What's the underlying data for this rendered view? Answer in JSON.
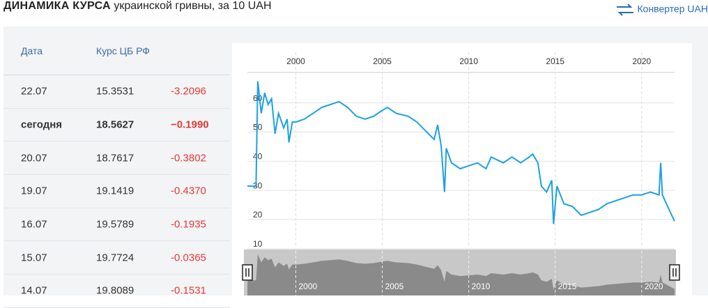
{
  "header": {
    "title": "ДИНАМИКА КУРСА",
    "subtitle": "украинской гривны, за 10 UAH",
    "link": "Конвертер UAH"
  },
  "table": {
    "columns": [
      "Дата",
      "Курс ЦБ РФ"
    ],
    "rows": [
      [
        "22.07",
        "15.3531",
        "-3.2096"
      ],
      [
        "сегодня",
        "18.5627",
        "−0.1990"
      ],
      [
        "20.07",
        "18.7617",
        "-0.3802"
      ],
      [
        "19.07",
        "19.1419",
        "-0.4370"
      ],
      [
        "16.07",
        "19.5789",
        "-0.1935"
      ],
      [
        "15.07",
        "19.7724",
        "-0.0365"
      ],
      [
        "14.07",
        "19.8089",
        "-0.1531"
      ]
    ]
  },
  "chart_data": {
    "type": "line",
    "color": "#1ba1e2",
    "x": [
      1997.2,
      1997.7,
      1997.8,
      1998.0,
      1998.2,
      1998.4,
      1998.6,
      1998.8,
      1999.0,
      1999.3,
      1999.5,
      1999.6,
      1999.8,
      2000,
      2000.5,
      2001,
      2001.5,
      2002,
      2002.5,
      2003,
      2003.5,
      2004,
      2004.5,
      2005,
      2005.3,
      2005.8,
      2006.5,
      2007,
      2007.5,
      2008,
      2008.2,
      2008.4,
      2008.6,
      2008.7,
      2009,
      2009.5,
      2010,
      2010.5,
      2011,
      2011.3,
      2012,
      2012.5,
      2013,
      2013.5,
      2013.7,
      2014,
      2014.2,
      2014.5,
      2014.8,
      2014.9,
      2015.1,
      2015.5,
      2016,
      2016.5,
      2017,
      2017.5,
      2018,
      2018.5,
      2019,
      2019.5,
      2020,
      2020.5,
      2021,
      2021.1,
      2021.2,
      2021.5,
      2021.9
    ],
    "values": [
      30,
      30,
      66,
      55,
      62,
      58,
      60,
      48,
      55,
      50,
      53,
      45,
      52,
      52,
      53,
      55,
      57,
      58,
      59,
      57,
      54,
      53,
      54,
      56,
      57,
      55,
      54,
      52,
      49,
      46,
      51,
      44,
      28,
      43,
      38,
      36,
      37,
      38,
      36,
      40,
      38,
      40,
      38,
      40,
      41,
      38,
      30,
      28,
      32,
      17,
      30,
      24,
      23,
      20,
      21,
      22,
      24,
      25,
      26,
      27,
      27,
      28,
      27,
      38,
      27,
      23,
      18
    ],
    "xlim": [
      1997.2,
      2021.9
    ],
    "xticks": [
      2000,
      2005,
      2010,
      2015,
      2020
    ],
    "ylim": [
      9,
      69
    ],
    "yticks": [
      10,
      20,
      30,
      40,
      50,
      60
    ],
    "grid": true
  }
}
